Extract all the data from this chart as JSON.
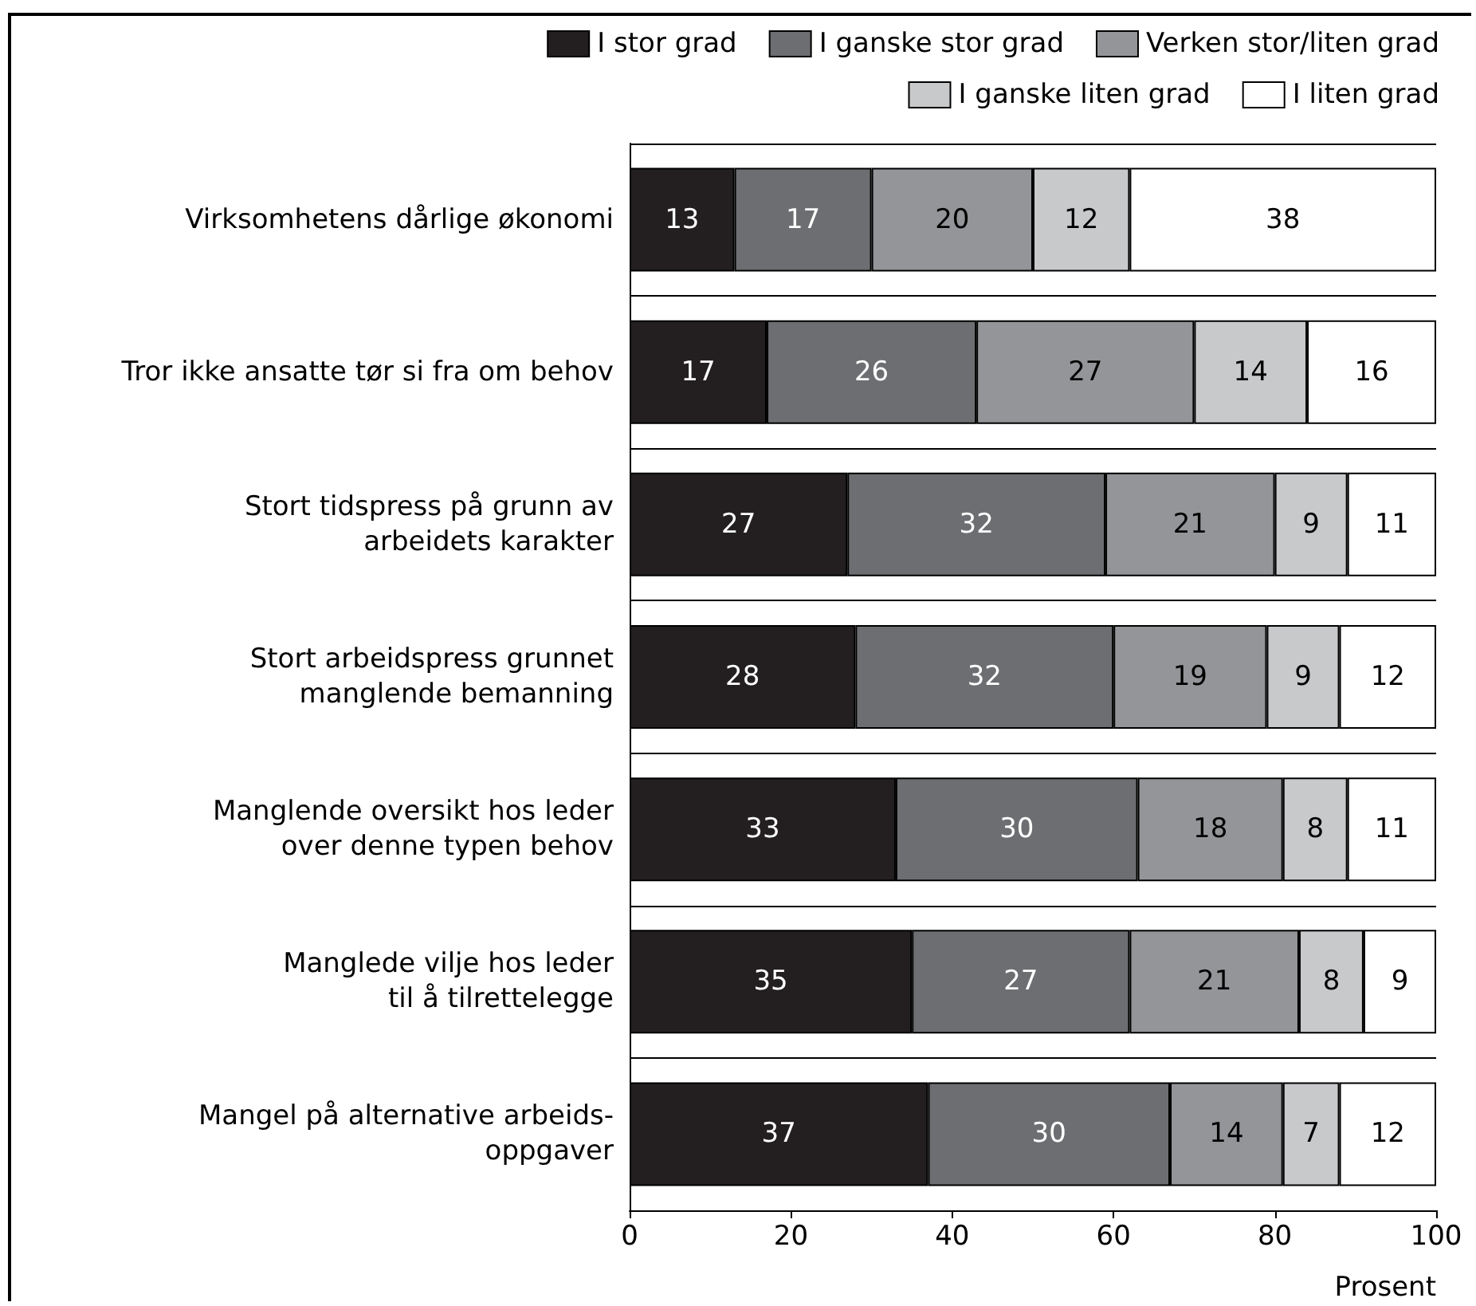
{
  "chart_data": {
    "type": "bar",
    "orientation": "horizontal",
    "stacked": true,
    "xlabel": "Prosent",
    "categories": [
      "Virksomhetens dårlige økonomi",
      "Tror ikke ansatte tør si fra om behov",
      "Stort tidspress på grunn av\narbeidets karakter",
      "Stort arbeidspress grunnet\nmanglende bemanning",
      "Manglende oversikt hos leder\nover denne typen behov",
      "Manglede vilje hos leder\ntil å tilrettelegge",
      "Mangel på alternative arbeids-\noppgaver"
    ],
    "series": [
      {
        "name": "I stor grad",
        "color": "#231f20",
        "values": [
          13,
          17,
          27,
          28,
          33,
          35,
          37
        ]
      },
      {
        "name": "I ganske stor grad",
        "color": "#6d6e71",
        "values": [
          17,
          26,
          32,
          32,
          30,
          27,
          30
        ]
      },
      {
        "name": "Verken stor/liten grad",
        "color": "#939598",
        "values": [
          20,
          27,
          21,
          19,
          18,
          21,
          14
        ]
      },
      {
        "name": "I ganske liten grad",
        "color": "#c8c9cb",
        "values": [
          12,
          14,
          9,
          9,
          8,
          8,
          7
        ]
      },
      {
        "name": "I liten grad",
        "color": "#ffffff",
        "values": [
          38,
          16,
          11,
          12,
          11,
          9,
          12
        ]
      }
    ],
    "xlim": [
      0,
      100
    ],
    "xticks": [
      0,
      20,
      40,
      60,
      80,
      100
    ],
    "data_labels": true,
    "legend": "top",
    "grid": "y"
  }
}
